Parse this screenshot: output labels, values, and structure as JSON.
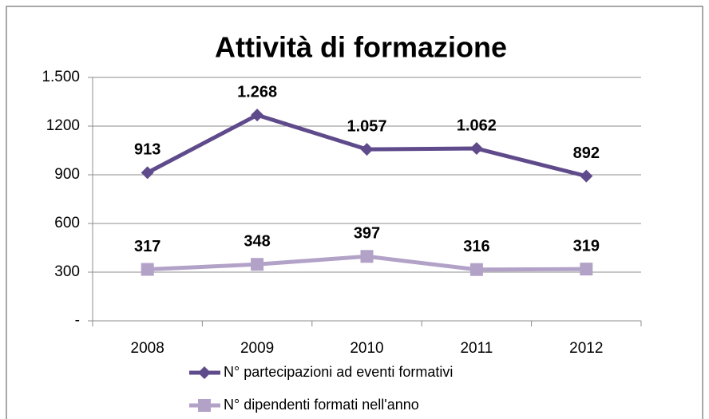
{
  "chart_data": {
    "type": "line",
    "title": "Attività di formazione",
    "categories": [
      "2008",
      "2009",
      "2010",
      "2011",
      "2012"
    ],
    "series": [
      {
        "name": "N° partecipazioni ad eventi formativi",
        "color": "#5f4b8b",
        "marker": "diamond",
        "values": [
          913,
          1268,
          1057,
          1062,
          892
        ],
        "value_labels": [
          "913",
          "1.268",
          "1.057",
          "1.062",
          "892"
        ]
      },
      {
        "name": "N° dipendenti formati nell'anno",
        "color": "#b3a2c7",
        "marker": "square",
        "values": [
          317,
          348,
          397,
          316,
          319
        ]
      }
    ],
    "ylim": [
      0,
      1500
    ],
    "yticks": [
      {
        "value": 0,
        "label": "-"
      },
      300,
      600,
      900,
      1200,
      {
        "value": 1500,
        "label": "1.500"
      }
    ],
    "grid": true,
    "legend": "bottom"
  }
}
